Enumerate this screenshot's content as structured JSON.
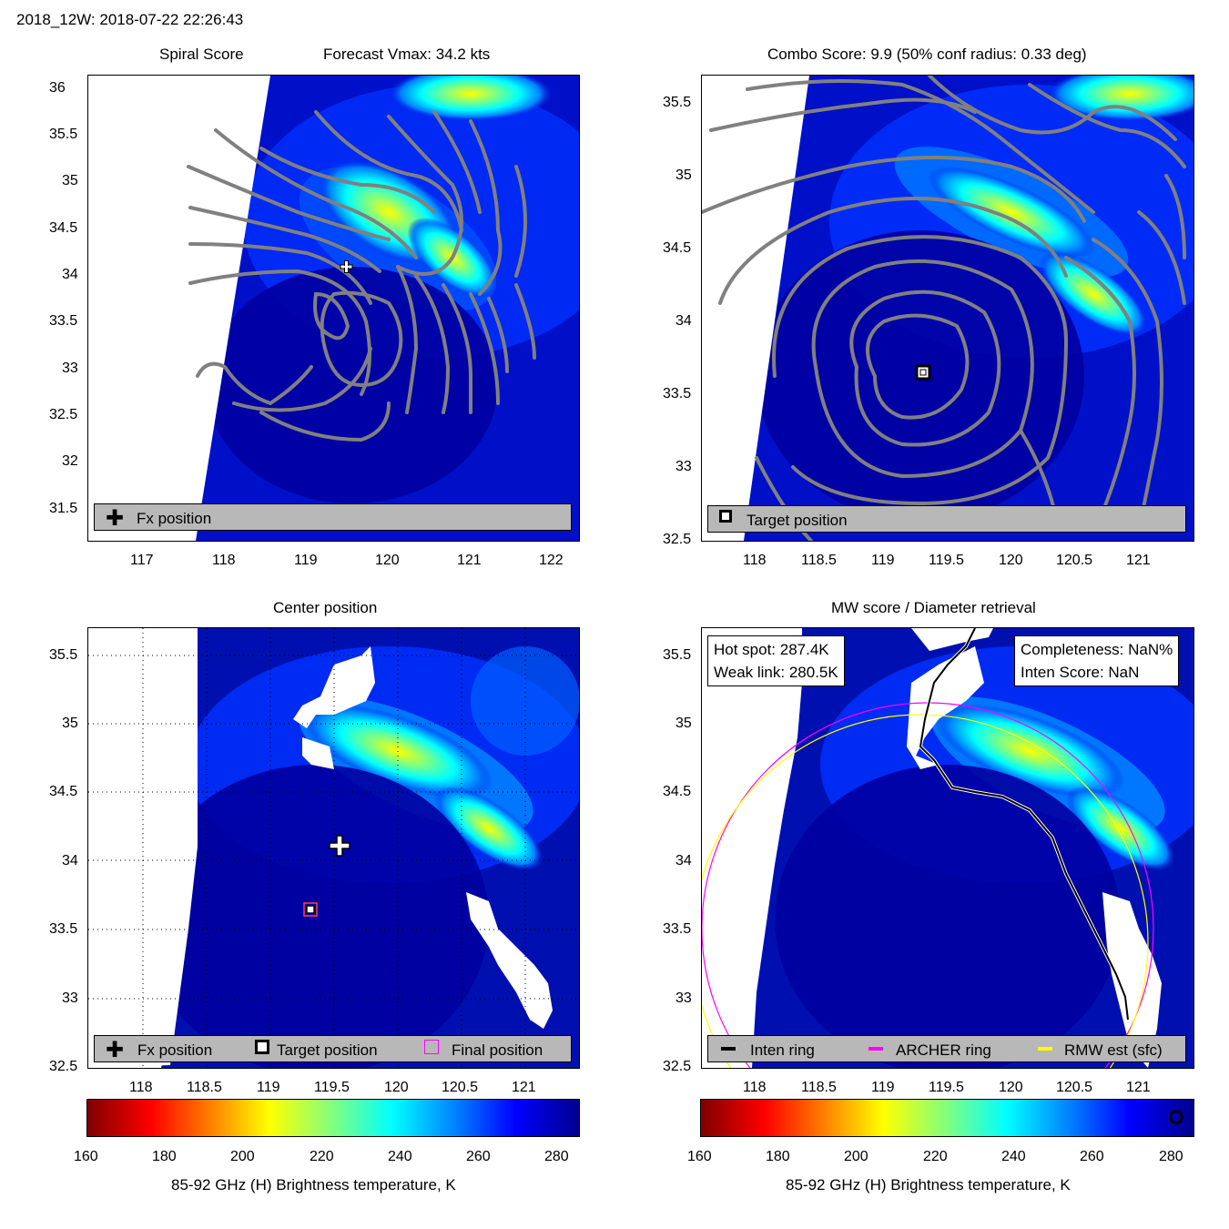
{
  "header": {
    "title": "2018_12W: 2018-07-22 22:26:43"
  },
  "panels": {
    "spiral": {
      "title_left": "Spiral Score",
      "title_right": "Forecast Vmax: 34.2 kts",
      "legend_fx": "Fx position"
    },
    "combo": {
      "title": "Combo Score: 9.9  (50% conf radius: 0.33 deg)",
      "legend_target": "Target position"
    },
    "center": {
      "title": "Center position",
      "legend_fx": "Fx position",
      "legend_target": "Target position",
      "legend_final": "Final position"
    },
    "mw": {
      "title": "MW score / Diameter retrieval",
      "hot_spot": "Hot spot: 287.4K",
      "weak_link": "Weak link: 280.5K",
      "completeness": "Completeness: NaN%",
      "inten_score": "Inten Score: NaN",
      "legend_inten": "Inten ring",
      "legend_archer": "ARCHER ring",
      "legend_rmw": "RMW est (sfc)"
    }
  },
  "chart_data": [
    {
      "type": "heatmap",
      "name": "spiral_score",
      "xlim": [
        116.35,
        122.35
      ],
      "ylim": [
        31.15,
        36.15
      ],
      "xticks": [
        "117",
        "118",
        "119",
        "120",
        "121",
        "122"
      ],
      "yticks": [
        "31.5",
        "32",
        "32.5",
        "33",
        "33.5",
        "34",
        "34.5",
        "35",
        "35.5",
        "36"
      ],
      "fx_position": {
        "lon": 119.5,
        "lat": 34.1
      }
    },
    {
      "type": "heatmap",
      "name": "combo_score",
      "xlim": [
        117.6,
        121.45
      ],
      "ylim": [
        32.5,
        35.65
      ],
      "xticks": [
        "118",
        "118.5",
        "119",
        "119.5",
        "120",
        "120.5",
        "121"
      ],
      "yticks": [
        "32.5",
        "33",
        "33.5",
        "34",
        "34.5",
        "35",
        "35.5"
      ],
      "target_position": {
        "lon": 119.3,
        "lat": 33.65
      }
    },
    {
      "type": "heatmap",
      "name": "center_position",
      "xlim": [
        117.6,
        121.45
      ],
      "ylim": [
        32.5,
        35.65
      ],
      "xticks": [
        "118",
        "118.5",
        "119",
        "119.5",
        "120",
        "120.5",
        "121"
      ],
      "yticks": [
        "32.5",
        "33",
        "33.5",
        "34",
        "34.5",
        "35",
        "35.5"
      ],
      "fx_position": {
        "lon": 119.5,
        "lat": 34.1
      },
      "target_position": {
        "lon": 119.3,
        "lat": 33.65
      },
      "final_position": {
        "lon": 119.3,
        "lat": 33.65
      }
    },
    {
      "type": "heatmap",
      "name": "mw_score",
      "xlim": [
        117.6,
        121.45
      ],
      "ylim": [
        32.5,
        35.65
      ],
      "xticks": [
        "118",
        "118.5",
        "119",
        "119.5",
        "120",
        "120.5",
        "121"
      ],
      "yticks": [
        "32.5",
        "33",
        "33.5",
        "34",
        "34.5",
        "35",
        "35.5"
      ]
    }
  ],
  "colorbar": {
    "ticks": [
      "160",
      "180",
      "200",
      "220",
      "240",
      "260",
      "280"
    ],
    "range": [
      160,
      285
    ],
    "label": "85-92 GHz (H) Brightness temperature, K"
  },
  "colors": {
    "legend_bg": "#b8b8b8",
    "contour": "#808080",
    "archer": "#ff00ff",
    "rmw": "#ffff00",
    "inten": "#000000"
  }
}
